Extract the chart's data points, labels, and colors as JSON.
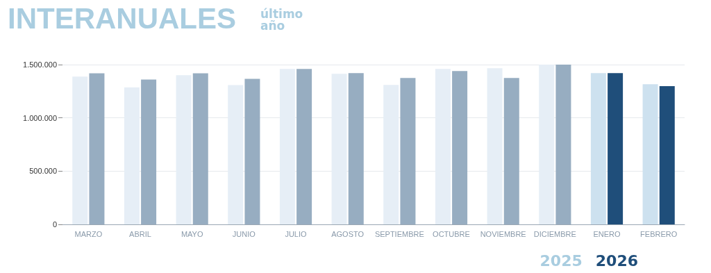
{
  "chart_data": {
    "type": "bar",
    "title": "INTERANUALES",
    "subtitle": "último\naño",
    "categories": [
      "MARZO",
      "ABRIL",
      "MAYO",
      "JUNIO",
      "JULIO",
      "AGOSTO",
      "SEPTIEMBRE",
      "OCTUBRE",
      "NOVIEMBRE",
      "DICIEMBRE",
      "ENERO",
      "FEBRERO"
    ],
    "series": [
      {
        "name": "2025",
        "color": "#a9cde0",
        "values": [
          1387000,
          1287000,
          1400000,
          1307000,
          1459000,
          1413000,
          1309000,
          1459000,
          1466000,
          1500000,
          1420000,
          1315000
        ],
        "colors": [
          "#e6eef6",
          "#e6eef6",
          "#e6eef6",
          "#e6eef6",
          "#e6eef6",
          "#e6eef6",
          "#e6eef6",
          "#e6eef6",
          "#e6eef6",
          "#e6eef6",
          "#cde1ef",
          "#cde1ef"
        ]
      },
      {
        "name": "2026",
        "color": "#1f4e7a",
        "values": [
          1418000,
          1359000,
          1418000,
          1366000,
          1459000,
          1420000,
          1374000,
          1439000,
          1374000,
          1500000,
          1420000,
          1298000
        ],
        "colors": [
          "#97adc1",
          "#97adc1",
          "#97adc1",
          "#97adc1",
          "#97adc1",
          "#97adc1",
          "#97adc1",
          "#97adc1",
          "#97adc1",
          "#97adc1",
          "#1f4e7a",
          "#1f4e7a"
        ]
      }
    ],
    "ylim": [
      0,
      1500000
    ],
    "yticks": [
      {
        "value": 0,
        "label": "0"
      },
      {
        "value": 500000,
        "label": "500.000"
      },
      {
        "value": 1000000,
        "label": "1.000.000"
      },
      {
        "value": 1500000,
        "label": "1.500.000"
      }
    ],
    "grid": "y",
    "legend": "bottom right"
  }
}
